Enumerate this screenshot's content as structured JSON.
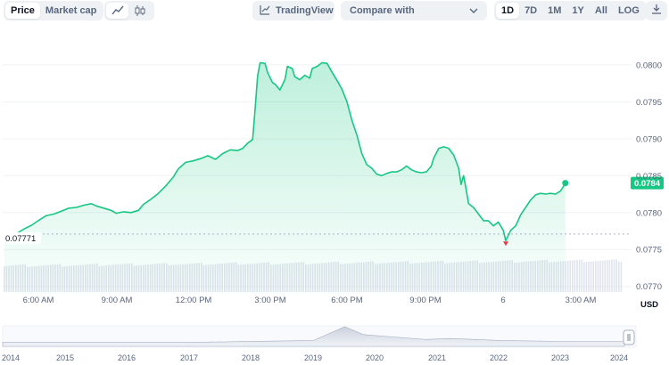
{
  "toolbar": {
    "type_options": [
      {
        "label": "Price",
        "active": true
      },
      {
        "label": "Market cap",
        "active": false
      }
    ],
    "view_icons": [
      {
        "name": "line-chart-icon",
        "active": true
      },
      {
        "name": "candlestick-icon",
        "active": false
      }
    ],
    "tradingview_label": "TradingView",
    "compare_label": "Compare with",
    "ranges": [
      {
        "label": "1D",
        "active": true
      },
      {
        "label": "7D",
        "active": false
      },
      {
        "label": "1M",
        "active": false
      },
      {
        "label": "1Y",
        "active": false
      },
      {
        "label": "All",
        "active": false
      },
      {
        "label": "LOG",
        "active": false
      }
    ],
    "download_icon": "download-icon"
  },
  "colors": {
    "accent": "#16c784",
    "negative": "#ea3943",
    "grid": "#eff2f5",
    "axis_text": "#58667e",
    "volume": "#cfd6e4"
  },
  "chart_data": {
    "type": "area",
    "x_labels": [
      "6:00 AM",
      "9:00 AM",
      "12:00 PM",
      "3:00 PM",
      "6:00 PM",
      "9:00 PM",
      "6",
      "3:00 AM"
    ],
    "y_ticks": [
      0.077,
      0.0775,
      0.078,
      0.0785,
      0.079,
      0.0795,
      0.08
    ],
    "y_tick_labels": [
      "0.0770",
      "0.0775",
      "0.0780",
      "0.0785",
      "0.0790",
      "0.0795",
      "0.0800"
    ],
    "ylim": [
      0.0769,
      0.0803
    ],
    "currency": "USD",
    "open_price_label": "0.07771",
    "open_price": 0.07771,
    "current_price_label": "0.0784",
    "current_price": 0.0784,
    "low_price": 0.07762,
    "x_hours_range": [
      4.5,
      29.3
    ],
    "series": [
      {
        "values": [
          [
            4.5,
            0.0777
          ],
          [
            4.8,
            0.07769
          ],
          [
            5.0,
            0.07772
          ],
          [
            5.3,
            0.07778
          ],
          [
            5.6,
            0.07783
          ],
          [
            5.9,
            0.0779
          ],
          [
            6.2,
            0.07796
          ],
          [
            6.5,
            0.07798
          ],
          [
            6.8,
            0.07802
          ],
          [
            7.1,
            0.07806
          ],
          [
            7.4,
            0.07807
          ],
          [
            7.7,
            0.0781
          ],
          [
            8.0,
            0.07812
          ],
          [
            8.2,
            0.07809
          ],
          [
            8.5,
            0.07806
          ],
          [
            8.8,
            0.07803
          ],
          [
            9.0,
            0.07799
          ],
          [
            9.3,
            0.07801
          ],
          [
            9.6,
            0.078
          ],
          [
            9.9,
            0.07803
          ],
          [
            10.1,
            0.07811
          ],
          [
            10.4,
            0.07818
          ],
          [
            10.7,
            0.07826
          ],
          [
            11.0,
            0.07836
          ],
          [
            11.3,
            0.07848
          ],
          [
            11.5,
            0.07859
          ],
          [
            11.8,
            0.07868
          ],
          [
            12.1,
            0.0787
          ],
          [
            12.4,
            0.07873
          ],
          [
            12.7,
            0.07877
          ],
          [
            13.0,
            0.07872
          ],
          [
            13.3,
            0.0788
          ],
          [
            13.6,
            0.07885
          ],
          [
            13.9,
            0.07884
          ],
          [
            14.1,
            0.07887
          ],
          [
            14.3,
            0.07894
          ],
          [
            14.5,
            0.07899
          ],
          [
            14.6,
            0.0794
          ],
          [
            14.7,
            0.07985
          ],
          [
            14.8,
            0.08003
          ],
          [
            15.0,
            0.08002
          ],
          [
            15.1,
            0.0799
          ],
          [
            15.3,
            0.07976
          ],
          [
            15.4,
            0.07974
          ],
          [
            15.6,
            0.07966
          ],
          [
            15.8,
            0.0798
          ],
          [
            15.9,
            0.07998
          ],
          [
            16.1,
            0.07995
          ],
          [
            16.2,
            0.07984
          ],
          [
            16.4,
            0.0798
          ],
          [
            16.6,
            0.07986
          ],
          [
            16.8,
            0.07982
          ],
          [
            16.9,
            0.07995
          ],
          [
            17.1,
            0.07998
          ],
          [
            17.3,
            0.08003
          ],
          [
            17.5,
            0.08002
          ],
          [
            17.7,
            0.0799
          ],
          [
            17.9,
            0.07979
          ],
          [
            18.1,
            0.07967
          ],
          [
            18.3,
            0.0795
          ],
          [
            18.5,
            0.07925
          ],
          [
            18.7,
            0.07905
          ],
          [
            18.9,
            0.0788
          ],
          [
            19.1,
            0.07865
          ],
          [
            19.3,
            0.0786
          ],
          [
            19.5,
            0.07852
          ],
          [
            19.7,
            0.0785
          ],
          [
            19.9,
            0.07853
          ],
          [
            20.1,
            0.07855
          ],
          [
            20.3,
            0.07855
          ],
          [
            20.5,
            0.07858
          ],
          [
            20.7,
            0.07863
          ],
          [
            20.9,
            0.07858
          ],
          [
            21.1,
            0.07855
          ],
          [
            21.3,
            0.07854
          ],
          [
            21.5,
            0.07855
          ],
          [
            21.7,
            0.07863
          ],
          [
            21.8,
            0.07874
          ],
          [
            22.0,
            0.07887
          ],
          [
            22.2,
            0.07889
          ],
          [
            22.4,
            0.07887
          ],
          [
            22.6,
            0.07878
          ],
          [
            22.8,
            0.0786
          ],
          [
            22.9,
            0.07838
          ],
          [
            23.0,
            0.0785
          ],
          [
            23.1,
            0.07832
          ],
          [
            23.2,
            0.07812
          ],
          [
            23.4,
            0.07807
          ],
          [
            23.6,
            0.07798
          ],
          [
            23.8,
            0.07789
          ],
          [
            24.0,
            0.07789
          ],
          [
            24.2,
            0.07782
          ],
          [
            24.4,
            0.07787
          ],
          [
            24.6,
            0.07776
          ],
          [
            24.7,
            0.07762
          ],
          [
            24.9,
            0.07776
          ],
          [
            25.1,
            0.07782
          ],
          [
            25.3,
            0.07797
          ],
          [
            25.5,
            0.07807
          ],
          [
            25.7,
            0.07817
          ],
          [
            25.9,
            0.07824
          ],
          [
            26.1,
            0.07826
          ],
          [
            26.3,
            0.07825
          ],
          [
            26.5,
            0.07826
          ],
          [
            26.7,
            0.07825
          ],
          [
            26.9,
            0.07829
          ],
          [
            27.0,
            0.07834
          ],
          [
            27.1,
            0.0784
          ]
        ]
      }
    ],
    "year_labels": [
      "2014",
      "2015",
      "2016",
      "2017",
      "2018",
      "2019",
      "2020",
      "2021",
      "2022",
      "2023",
      "2024"
    ],
    "overview_values": [
      [
        0,
        0.2
      ],
      [
        0.3,
        0.2
      ],
      [
        0.5,
        0.3
      ],
      [
        0.55,
        1.0
      ],
      [
        0.58,
        0.6
      ],
      [
        0.62,
        0.5
      ],
      [
        0.68,
        0.35
      ],
      [
        0.72,
        0.4
      ],
      [
        0.8,
        0.3
      ],
      [
        0.9,
        0.25
      ],
      [
        1.0,
        0.25
      ]
    ]
  }
}
